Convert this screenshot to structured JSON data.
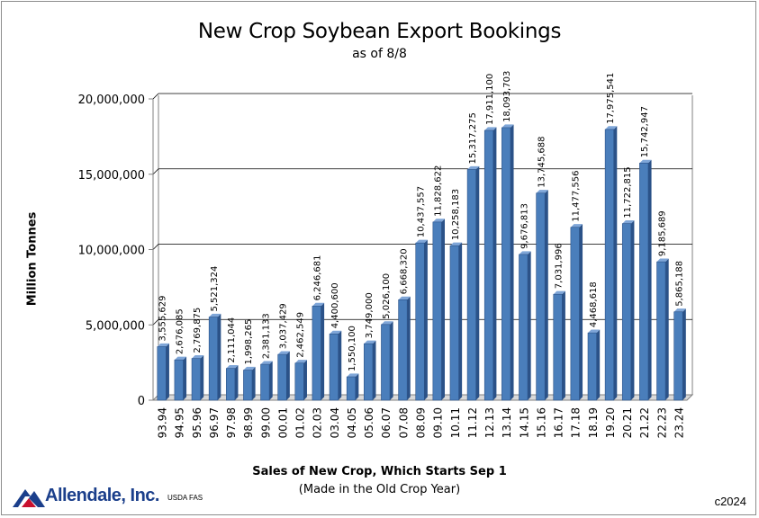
{
  "chart_data": {
    "type": "bar",
    "title": "New Crop Soybean Export Bookings",
    "subtitle": "as of 8/8",
    "ylabel": "Million Tonnes",
    "xlabel": "Sales of New Crop, Which Starts Sep 1",
    "xsublabel": "(Made in the Old Crop Year)",
    "ylim": [
      0,
      20000000
    ],
    "yticks": [
      0,
      5000000,
      10000000,
      15000000,
      20000000
    ],
    "ytick_labels": [
      "0",
      "5,000,000",
      "10,000,000",
      "15,000,000",
      "20,000,000"
    ],
    "grid": true,
    "bar_color": "#4a7ebb",
    "categories": [
      "93.94",
      "94.95",
      "95.96",
      "96.97",
      "97.98",
      "98.99",
      "99.00",
      "00.01",
      "01.02",
      "02.03",
      "03.04",
      "04.05",
      "05.06",
      "06.07",
      "07.08",
      "08.09",
      "09.10",
      "10.11",
      "11.12",
      "12.13",
      "13.14",
      "14.15",
      "15.16",
      "16.17",
      "17.18",
      "18.19",
      "19.20",
      "20.21",
      "21.22",
      "22.23",
      "23.24"
    ],
    "values": [
      3555629,
      2676085,
      2769875,
      5521324,
      2111044,
      1998265,
      2381133,
      3037429,
      2462549,
      6246681,
      4400600,
      1550100,
      3749000,
      5026100,
      6668320,
      10437557,
      11828622,
      10258183,
      15317275,
      17911100,
      18093703,
      9676813,
      13745688,
      7031996,
      11477556,
      4468618,
      17975541,
      11722815,
      15742947,
      9185689,
      5865188
    ],
    "value_labels": [
      "3,555,629",
      "2,676,085",
      "2,769,875",
      "5,521,324",
      "2,111,044",
      "1,998,265",
      "2,381,133",
      "3,037,429",
      "2,462,549",
      "6,246,681",
      "4,400,600",
      "1,550,100",
      "3,749,000",
      "5,026,100",
      "6,668,320",
      "10,437,557",
      "11,828,622",
      "10,258,183",
      "15,317,275",
      "17,911,100",
      "18,093,703",
      "9,676,813",
      "13,745,688",
      "7,031,996",
      "11,477,556",
      "4,468,618",
      "17,975,541",
      "11,722,815",
      "15,742,947",
      "9,185,689",
      "5,865,188"
    ]
  },
  "footer": {
    "logo_text": "Allendale, Inc.",
    "source": "USDA FAS",
    "copyright": "c2024"
  }
}
